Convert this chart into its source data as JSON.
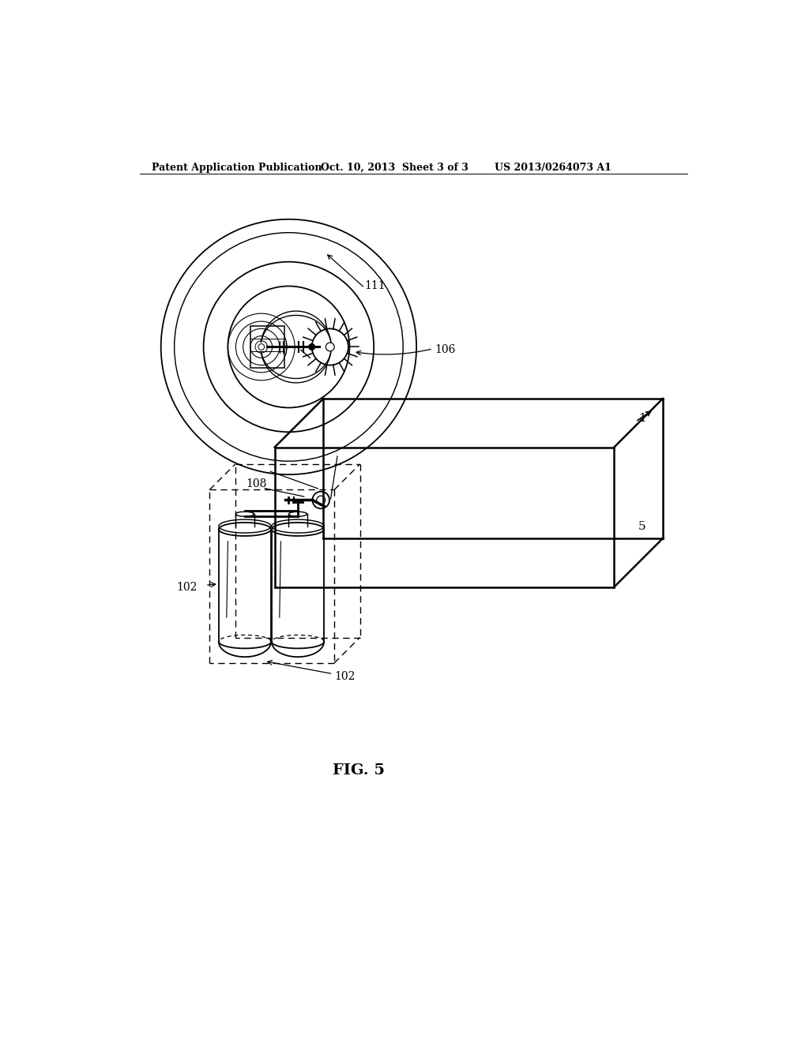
{
  "bg_color": "#ffffff",
  "header_left": "Patent Application Publication",
  "header_mid": "Oct. 10, 2013  Sheet 3 of 3",
  "header_right": "US 2013/0264073 A1",
  "fig_label": "FIG. 5",
  "label_1": "1",
  "label_5": "5",
  "label_102a": "102",
  "label_102b": "102",
  "label_106": "106",
  "label_108": "108",
  "label_111": "111"
}
